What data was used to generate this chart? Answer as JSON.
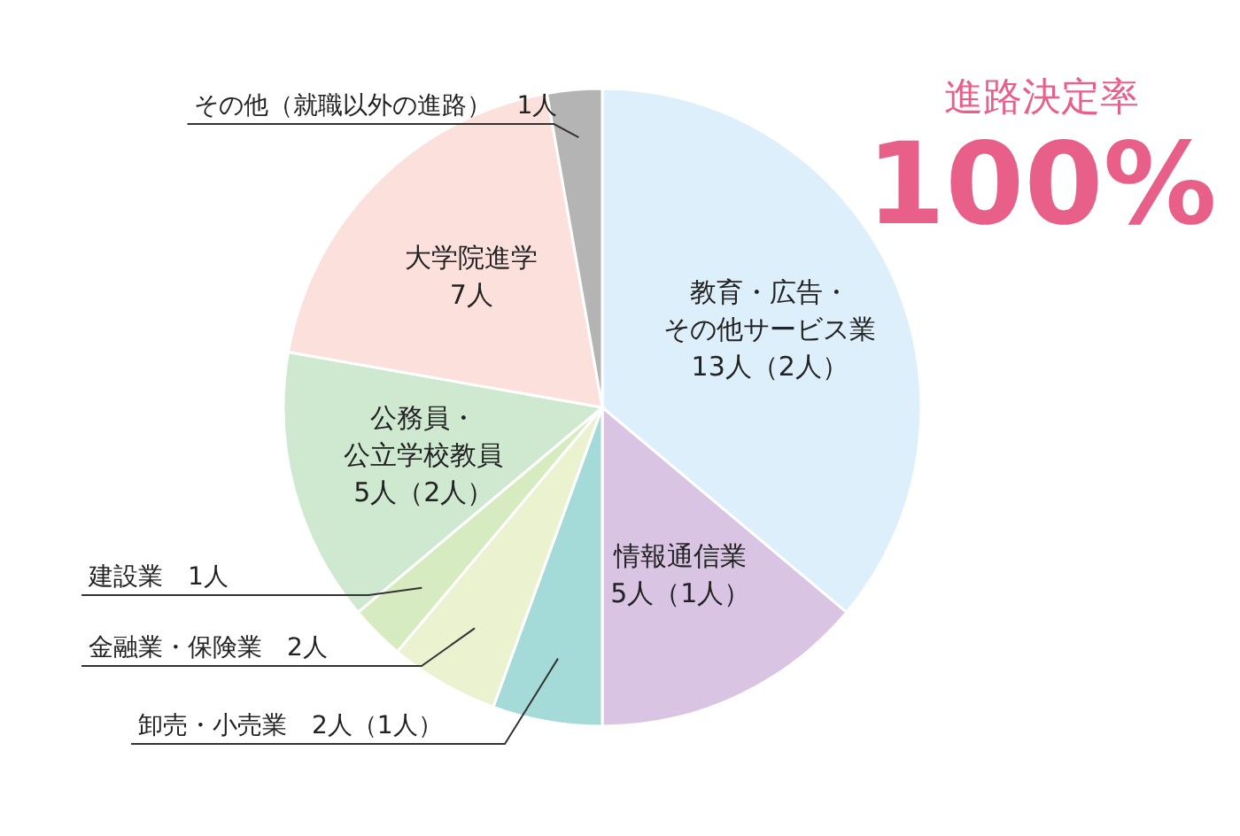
{
  "chart_data": {
    "type": "pie",
    "title": "進路決定率",
    "subtitle": "100%",
    "categories": [
      "教育・広告・その他サービス業",
      "情報通信業",
      "卸売・小売業",
      "金融業・保険業",
      "建設業",
      "公務員・公立学校教員",
      "大学院進学",
      "その他（就職以外の進路）"
    ],
    "values": [
      13,
      5,
      2,
      2,
      1,
      5,
      7,
      1
    ],
    "value_labels": [
      "13人（2人）",
      "5人（1人）",
      "2人（1人）",
      "2人",
      "1人",
      "5人（2人）",
      "7人",
      "1人"
    ],
    "colors": [
      "#dcefFB",
      "#d9c4e4",
      "#a4dad7",
      "#eaf2d0",
      "#d7ebc0",
      "#cfe9d0",
      "#fbe0dc",
      "#b4b4b4"
    ]
  }
}
